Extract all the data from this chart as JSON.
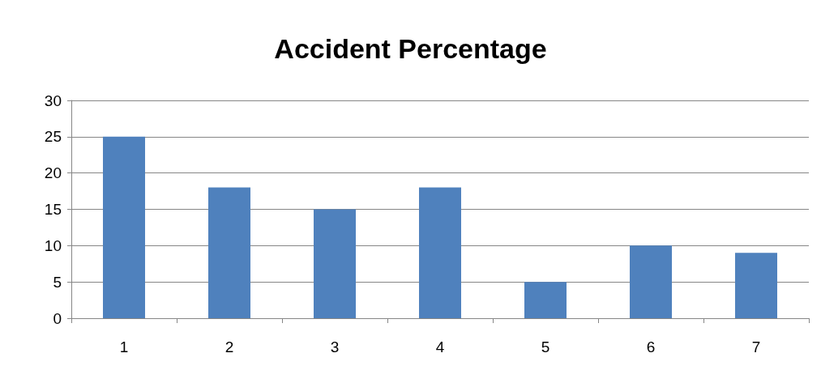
{
  "chart_data": {
    "type": "bar",
    "title": "Accident Percentage",
    "categories": [
      "1",
      "2",
      "3",
      "4",
      "5",
      "6",
      "7"
    ],
    "values": [
      25,
      18,
      15,
      18,
      5,
      10,
      9
    ],
    "color": "#4f81bd",
    "ylim": [
      0,
      30
    ],
    "yticks": [
      0,
      5,
      10,
      15,
      20,
      25,
      30
    ],
    "grid": "y"
  }
}
